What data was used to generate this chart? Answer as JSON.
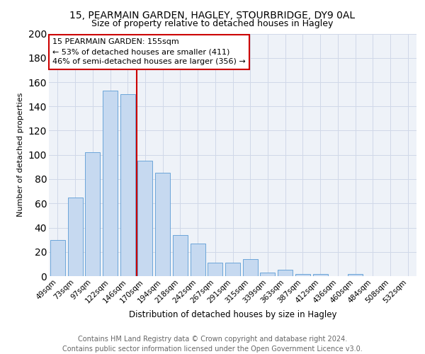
{
  "title1": "15, PEARMAIN GARDEN, HAGLEY, STOURBRIDGE, DY9 0AL",
  "title2": "Size of property relative to detached houses in Hagley",
  "xlabel": "Distribution of detached houses by size in Hagley",
  "ylabel": "Number of detached properties",
  "categories": [
    "49sqm",
    "73sqm",
    "97sqm",
    "122sqm",
    "146sqm",
    "170sqm",
    "194sqm",
    "218sqm",
    "242sqm",
    "267sqm",
    "291sqm",
    "315sqm",
    "339sqm",
    "363sqm",
    "387sqm",
    "412sqm",
    "436sqm",
    "460sqm",
    "484sqm",
    "508sqm",
    "532sqm"
  ],
  "values": [
    30,
    65,
    102,
    153,
    150,
    95,
    85,
    34,
    27,
    11,
    11,
    14,
    3,
    5,
    2,
    2,
    0,
    2,
    0,
    0,
    0
  ],
  "bar_color": "#c6d9f0",
  "bar_edge_color": "#5b9bd5",
  "vline_color": "#cc0000",
  "annotation_text": "15 PEARMAIN GARDEN: 155sqm\n← 53% of detached houses are smaller (411)\n46% of semi-detached houses are larger (356) →",
  "annotation_box_color": "white",
  "annotation_box_edge": "#cc0000",
  "ylim": [
    0,
    200
  ],
  "yticks": [
    0,
    20,
    40,
    60,
    80,
    100,
    120,
    140,
    160,
    180,
    200
  ],
  "grid_color": "#d0d8e8",
  "background_color": "#eef2f8",
  "footer_text": "Contains HM Land Registry data © Crown copyright and database right 2024.\nContains public sector information licensed under the Open Government Licence v3.0.",
  "title1_fontsize": 10,
  "title2_fontsize": 9,
  "xlabel_fontsize": 8.5,
  "ylabel_fontsize": 8,
  "tick_fontsize": 7.5,
  "annotation_fontsize": 8,
  "footer_fontsize": 7
}
